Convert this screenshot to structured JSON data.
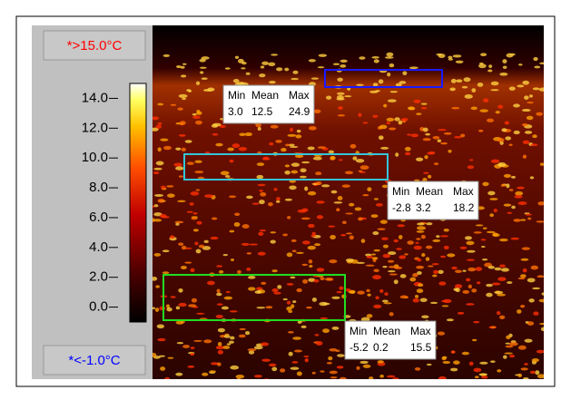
{
  "colorbar": {
    "clim": [
      -1,
      15
    ],
    "max_label": "*>15.0°C",
    "min_label": "*<-1.0°C",
    "ticks": [
      {
        "value": 14,
        "label": "14.0"
      },
      {
        "value": 12,
        "label": "12.0"
      },
      {
        "value": 10,
        "label": "10.0"
      },
      {
        "value": 8,
        "label": "8.0"
      },
      {
        "value": 6,
        "label": "6.0"
      },
      {
        "value": 4,
        "label": "4.0"
      },
      {
        "value": 2,
        "label": "2.0"
      },
      {
        "value": 0,
        "label": "0.0"
      }
    ]
  },
  "stat_headers": [
    "Min",
    "Mean",
    "Max"
  ],
  "regions": [
    {
      "color": "#1a1aff",
      "stats": [
        "3.0",
        "12.5",
        "24.9"
      ]
    },
    {
      "color": "#33c6d8",
      "stats": [
        "-2.8",
        "3.2",
        "18.2"
      ]
    },
    {
      "color": "#22dd22",
      "stats": [
        "-5.2",
        "0.2",
        "15.5"
      ]
    }
  ]
}
